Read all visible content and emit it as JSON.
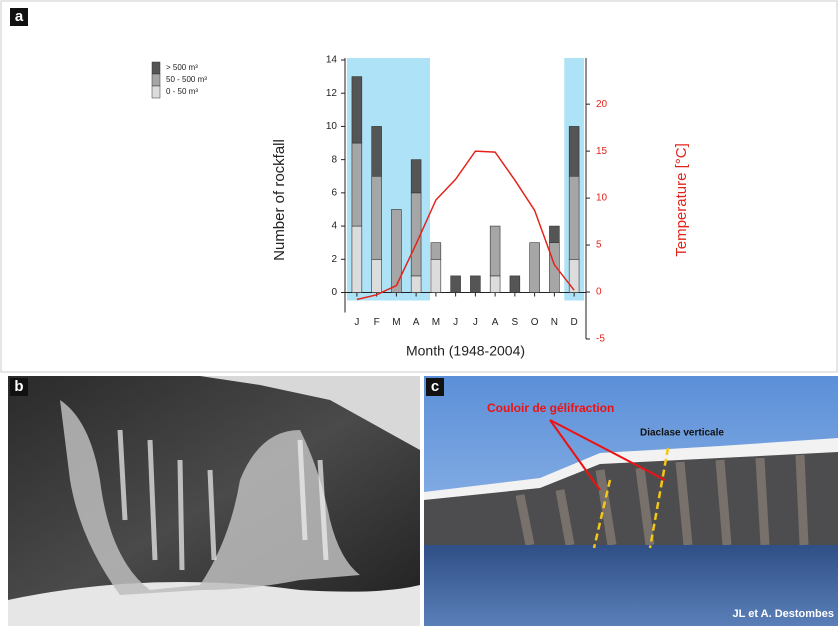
{
  "panels": {
    "a": "a",
    "b": "b",
    "c": "c"
  },
  "photo_c": {
    "annotation": "Couloir de gélifraction",
    "fracture": "Diaclase verticale",
    "credit": "JL et A. Destombes"
  },
  "chart_data": {
    "type": "bar",
    "stacked": true,
    "xlabel": "Month (1948-2004)",
    "ylabel": "Number of rockfall",
    "y2label": "Temperature [°C]",
    "categories": [
      "J",
      "F",
      "M",
      "A",
      "M",
      "J",
      "J",
      "A",
      "S",
      "O",
      "N",
      "D"
    ],
    "series": [
      {
        "name": "> 500 m³",
        "color": "#555555",
        "values": [
          4,
          3,
          0,
          2,
          0,
          1,
          1,
          0,
          1,
          0,
          1,
          3
        ]
      },
      {
        "name": "50 - 500 m³",
        "color": "#a6a6a6",
        "values": [
          5,
          5,
          5,
          5,
          1,
          0,
          0,
          3,
          0,
          3,
          3,
          5
        ]
      },
      {
        "name": "0 - 50 m³",
        "color": "#dcdcdc",
        "values": [
          4,
          2,
          0,
          1,
          2,
          0,
          0,
          1,
          0,
          0,
          0,
          2
        ]
      }
    ],
    "line_series": {
      "color": "#e3241b",
      "axis": "y2",
      "values": [
        -0.8,
        -0.3,
        0.7,
        5.1,
        9.8,
        12,
        15,
        14.9,
        11.9,
        8.7,
        2.9,
        0.2
      ]
    },
    "ylim": [
      -2.8,
      14
    ],
    "yticks": [
      0,
      2,
      4,
      6,
      8,
      10,
      12,
      14
    ],
    "y2lim": [
      -5,
      24.7
    ],
    "y2ticks": [
      -5,
      0,
      5,
      10,
      15,
      20
    ]
  }
}
